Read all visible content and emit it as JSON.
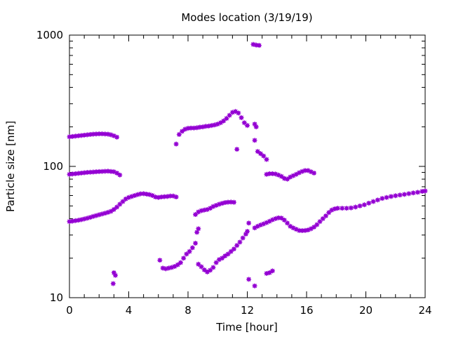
{
  "chart_data": {
    "type": "scatter",
    "title": "Modes location (3/19/19)",
    "xlabel": "Time [hour]",
    "ylabel": "Particle size [nm]",
    "xlim": [
      0,
      24
    ],
    "ylim": [
      10,
      1000
    ],
    "yscale": "log",
    "grid": false,
    "legend": "none",
    "marker_color": "#9400d3",
    "x_ticks": [
      0,
      4,
      8,
      12,
      16,
      20,
      24
    ],
    "x_tick_labels": [
      "0",
      "4",
      "8",
      "12",
      "16",
      "20",
      "24"
    ],
    "y_ticks": [
      10,
      100,
      1000
    ],
    "y_tick_labels": [
      "10",
      "100",
      "1000"
    ],
    "series": [
      {
        "values": [
          [
            0.0,
            38
          ],
          [
            0.2,
            38.3
          ],
          [
            0.4,
            38.6
          ],
          [
            0.6,
            38.9
          ],
          [
            0.8,
            39.3
          ],
          [
            1.0,
            39.8
          ],
          [
            1.2,
            40.3
          ],
          [
            1.4,
            40.9
          ],
          [
            1.6,
            41.6
          ],
          [
            1.8,
            42.2
          ],
          [
            2.0,
            42.8
          ],
          [
            2.2,
            43.4
          ],
          [
            2.4,
            44.0
          ],
          [
            2.6,
            44.7
          ],
          [
            2.8,
            45.5
          ],
          [
            3.0,
            47.0
          ],
          [
            3.2,
            49.0
          ],
          [
            3.4,
            51.5
          ],
          [
            3.6,
            54.0
          ],
          [
            3.8,
            56.5
          ],
          [
            4.0,
            58.0
          ],
          [
            4.2,
            59.0
          ],
          [
            4.4,
            60.0
          ],
          [
            4.6,
            61.0
          ],
          [
            4.8,
            61.8
          ],
          [
            5.0,
            62.0
          ],
          [
            5.2,
            61.5
          ],
          [
            5.4,
            61.0
          ],
          [
            5.6,
            60.0
          ],
          [
            5.8,
            58.5
          ],
          [
            6.0,
            58.0
          ],
          [
            6.2,
            58.5
          ],
          [
            6.4,
            58.8
          ],
          [
            6.6,
            59.0
          ],
          [
            6.8,
            59.5
          ],
          [
            7.0,
            59.5
          ],
          [
            7.2,
            58.5
          ],
          [
            0.0,
            87
          ],
          [
            0.2,
            87.5
          ],
          [
            0.4,
            88
          ],
          [
            0.6,
            88.5
          ],
          [
            0.8,
            89
          ],
          [
            1.0,
            89.5
          ],
          [
            1.2,
            90
          ],
          [
            1.4,
            90.3
          ],
          [
            1.6,
            90.6
          ],
          [
            1.8,
            91
          ],
          [
            2.0,
            91.3
          ],
          [
            2.2,
            91.5
          ],
          [
            2.4,
            91.8
          ],
          [
            2.6,
            92
          ],
          [
            2.8,
            91.5
          ],
          [
            3.0,
            91
          ],
          [
            3.2,
            89
          ],
          [
            3.4,
            86
          ],
          [
            0.0,
            168
          ],
          [
            0.2,
            169
          ],
          [
            0.4,
            170
          ],
          [
            0.6,
            171
          ],
          [
            0.8,
            172
          ],
          [
            1.0,
            173
          ],
          [
            1.2,
            174
          ],
          [
            1.4,
            175
          ],
          [
            1.6,
            176
          ],
          [
            1.8,
            176.5
          ],
          [
            2.0,
            177
          ],
          [
            2.2,
            177
          ],
          [
            2.4,
            176.5
          ],
          [
            2.6,
            176
          ],
          [
            2.8,
            174
          ],
          [
            3.0,
            171
          ],
          [
            3.2,
            167
          ],
          [
            3.0,
            15.5
          ],
          [
            3.1,
            14.8
          ],
          [
            2.95,
            12.8
          ],
          [
            6.1,
            19.3
          ],
          [
            6.3,
            16.8
          ],
          [
            6.5,
            16.6
          ],
          [
            6.7,
            16.8
          ],
          [
            6.9,
            17.0
          ],
          [
            7.1,
            17.3
          ],
          [
            7.3,
            17.8
          ],
          [
            7.5,
            18.5
          ],
          [
            7.7,
            20.0
          ],
          [
            7.9,
            21.5
          ],
          [
            8.1,
            22.5
          ],
          [
            8.3,
            24.0
          ],
          [
            8.5,
            26.0
          ],
          [
            8.6,
            31.5
          ],
          [
            8.7,
            33.5
          ],
          [
            8.5,
            43
          ],
          [
            8.7,
            45
          ],
          [
            8.9,
            46
          ],
          [
            9.1,
            46.5
          ],
          [
            9.3,
            47
          ],
          [
            9.5,
            48
          ],
          [
            9.7,
            49.5
          ],
          [
            9.9,
            50.5
          ],
          [
            10.1,
            51.5
          ],
          [
            10.3,
            52.3
          ],
          [
            10.5,
            53
          ],
          [
            10.7,
            53.4
          ],
          [
            10.9,
            53.5
          ],
          [
            11.1,
            53.3
          ],
          [
            8.7,
            18
          ],
          [
            8.9,
            17.2
          ],
          [
            9.1,
            16.3
          ],
          [
            9.3,
            15.7
          ],
          [
            9.5,
            16.2
          ],
          [
            9.7,
            17.0
          ],
          [
            9.9,
            18.5
          ],
          [
            10.1,
            19.5
          ],
          [
            10.3,
            20.0
          ],
          [
            10.5,
            20.8
          ],
          [
            10.7,
            21.5
          ],
          [
            10.9,
            22.5
          ],
          [
            11.1,
            23.5
          ],
          [
            11.3,
            25.0
          ],
          [
            11.5,
            26.5
          ],
          [
            11.7,
            28.5
          ],
          [
            11.9,
            30.5
          ],
          [
            12.0,
            32.0
          ],
          [
            7.2,
            148
          ],
          [
            7.4,
            175
          ],
          [
            7.6,
            185
          ],
          [
            7.8,
            192
          ],
          [
            8.0,
            195
          ],
          [
            8.2,
            196
          ],
          [
            8.4,
            196
          ],
          [
            8.6,
            197
          ],
          [
            8.8,
            199
          ],
          [
            9.0,
            200
          ],
          [
            9.2,
            202
          ],
          [
            9.4,
            203
          ],
          [
            9.6,
            205
          ],
          [
            9.8,
            207
          ],
          [
            10.0,
            210
          ],
          [
            10.2,
            215
          ],
          [
            10.4,
            222
          ],
          [
            10.6,
            232
          ],
          [
            10.8,
            245
          ],
          [
            11.0,
            258
          ],
          [
            11.2,
            262
          ],
          [
            11.4,
            255
          ],
          [
            11.6,
            235
          ],
          [
            11.8,
            215
          ],
          [
            12.0,
            205
          ],
          [
            11.3,
            135
          ],
          [
            12.1,
            37
          ],
          [
            12.1,
            13.8
          ],
          [
            12.5,
            12.3
          ],
          [
            12.5,
            210
          ],
          [
            12.6,
            200
          ],
          [
            12.5,
            158
          ],
          [
            12.7,
            130
          ],
          [
            12.9,
            125
          ],
          [
            13.1,
            120
          ],
          [
            13.3,
            113
          ],
          [
            12.4,
            850
          ],
          [
            12.6,
            840
          ],
          [
            12.8,
            835
          ],
          [
            12.5,
            34
          ],
          [
            12.7,
            35
          ],
          [
            12.9,
            35.8
          ],
          [
            13.1,
            36.5
          ],
          [
            13.3,
            37.3
          ],
          [
            13.5,
            38.2
          ],
          [
            13.7,
            39.2
          ],
          [
            13.9,
            40.0
          ],
          [
            14.1,
            40.6
          ],
          [
            14.3,
            40.4
          ],
          [
            14.5,
            39
          ],
          [
            14.7,
            37
          ],
          [
            14.9,
            35
          ],
          [
            15.1,
            34
          ],
          [
            15.3,
            33.2
          ],
          [
            15.5,
            32.5
          ],
          [
            15.7,
            32.4
          ],
          [
            15.9,
            32.5
          ],
          [
            16.1,
            32.8
          ],
          [
            16.3,
            33.5
          ],
          [
            16.5,
            34.5
          ],
          [
            16.7,
            36.0
          ],
          [
            16.9,
            38.0
          ],
          [
            17.1,
            40.0
          ],
          [
            17.3,
            42.0
          ],
          [
            17.5,
            44.5
          ],
          [
            17.7,
            46.5
          ],
          [
            17.9,
            47.5
          ],
          [
            18.1,
            48
          ],
          [
            18.4,
            48
          ],
          [
            18.7,
            48
          ],
          [
            19.0,
            48.3
          ],
          [
            19.3,
            49
          ],
          [
            19.6,
            50
          ],
          [
            19.9,
            51
          ],
          [
            20.2,
            52.5
          ],
          [
            20.5,
            54
          ],
          [
            20.8,
            55.5
          ],
          [
            21.1,
            57
          ],
          [
            21.4,
            58
          ],
          [
            21.7,
            59
          ],
          [
            22.0,
            59.8
          ],
          [
            22.3,
            60.5
          ],
          [
            22.6,
            61.2
          ],
          [
            22.9,
            62
          ],
          [
            23.2,
            62.8
          ],
          [
            23.5,
            63.5
          ],
          [
            23.8,
            64.5
          ],
          [
            24.0,
            65
          ],
          [
            13.3,
            15.3
          ],
          [
            13.5,
            15.5
          ],
          [
            13.7,
            16
          ],
          [
            13.3,
            87
          ],
          [
            13.5,
            88
          ],
          [
            13.7,
            88
          ],
          [
            13.9,
            87.5
          ],
          [
            14.1,
            86
          ],
          [
            14.3,
            84
          ],
          [
            14.5,
            81
          ],
          [
            14.7,
            80
          ],
          [
            14.9,
            83
          ],
          [
            15.1,
            85
          ],
          [
            15.3,
            87
          ],
          [
            15.5,
            89.5
          ],
          [
            15.7,
            91.5
          ],
          [
            15.9,
            93
          ],
          [
            16.1,
            93
          ],
          [
            16.3,
            91
          ],
          [
            16.5,
            89
          ]
        ]
      }
    ]
  }
}
